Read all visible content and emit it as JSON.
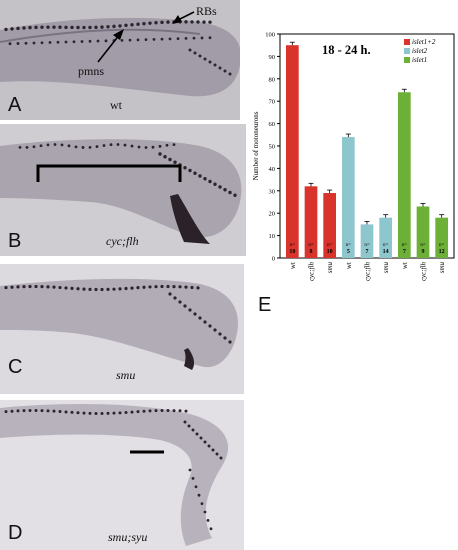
{
  "figure": {
    "panels": [
      {
        "letter": "A",
        "genotype": "wt",
        "italic": false,
        "labels": {
          "left": "pmns",
          "right": "RBs"
        }
      },
      {
        "letter": "B",
        "genotype": "cyc;flh",
        "italic": true
      },
      {
        "letter": "C",
        "genotype": "smu",
        "italic": true
      },
      {
        "letter": "D",
        "genotype": "smu;syu",
        "italic": true
      }
    ],
    "chart_letter": "E"
  },
  "chart_data": {
    "type": "bar",
    "title": "18 - 24 h.",
    "ylabel": "Number of motoneurons",
    "xlabel": "",
    "ylim": [
      0,
      100
    ],
    "yticks": [
      0,
      10,
      20,
      30,
      40,
      50,
      60,
      70,
      80,
      90,
      100
    ],
    "legend": {
      "placement": "top-right",
      "entries": [
        "islet1+2",
        "islet2",
        "islet1"
      ]
    },
    "colors": {
      "islet1+2": "#d9342b",
      "islet2": "#8ec6ce",
      "islet1": "#6cb037"
    },
    "n_prefix": "n=",
    "series": [
      {
        "name": "islet1+2",
        "categories": [
          "wt",
          "cyc;flh",
          "smu"
        ],
        "values": [
          95,
          32,
          29
        ],
        "n": [
          10,
          8,
          10
        ]
      },
      {
        "name": "islet2",
        "categories": [
          "wt",
          "cyc;flh",
          "smu"
        ],
        "values": [
          54,
          15,
          18
        ],
        "n": [
          5,
          7,
          14
        ]
      },
      {
        "name": "islet1",
        "categories": [
          "wt",
          "cyc;flh",
          "smu"
        ],
        "values": [
          74,
          23,
          18
        ],
        "n": [
          7,
          9,
          12
        ]
      }
    ]
  }
}
